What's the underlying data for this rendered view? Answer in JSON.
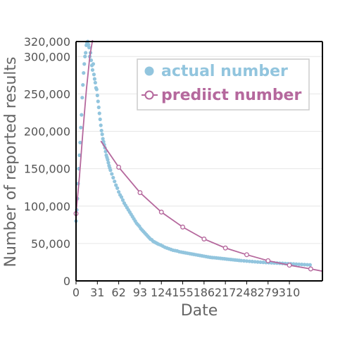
{
  "chart_data": {
    "type": "scatter",
    "xlabel": "Date",
    "ylabel": "Number of reported results",
    "xticks": [
      0,
      31,
      62,
      93,
      124,
      155,
      186,
      217,
      248,
      279,
      310
    ],
    "yticks": [
      0,
      50000,
      100000,
      150000,
      200000,
      250000,
      300000,
      320000
    ],
    "ytick_labels": [
      "0",
      "50,000",
      "100,000",
      "150,000",
      "200,000",
      "250,000",
      "300,000",
      "320,000"
    ],
    "xlim": [
      0,
      358
    ],
    "ylim": [
      0,
      320000
    ],
    "grid": "horizontal",
    "legend_position": "top-right",
    "colors": {
      "actual": "#92c5de",
      "predicted": "#b5689d",
      "grid": "#e6e6e6",
      "axis": "#000000"
    },
    "series": [
      {
        "name": "actual number",
        "kind": "scatter",
        "x": [
          0,
          1,
          2,
          3,
          4,
          5,
          6,
          7,
          8,
          9,
          10,
          11,
          12,
          13,
          14,
          15,
          16,
          17,
          18,
          19,
          20,
          21,
          22,
          23,
          24,
          25,
          26,
          27,
          28,
          29,
          30,
          31,
          32,
          33,
          34,
          35,
          36,
          37,
          38,
          39,
          40,
          41,
          42,
          43,
          44,
          45,
          46,
          47,
          48,
          49,
          50,
          52,
          54,
          56,
          58,
          60,
          62,
          64,
          66,
          68,
          70,
          72,
          74,
          76,
          78,
          80,
          82,
          84,
          86,
          88,
          90,
          92,
          94,
          96,
          98,
          100,
          102,
          104,
          106,
          108,
          110,
          112,
          114,
          116,
          118,
          120,
          123,
          126,
          129,
          132,
          135,
          138,
          141,
          144,
          147,
          150,
          153,
          156,
          159,
          162,
          165,
          168,
          171,
          174,
          177,
          180,
          183,
          186,
          189,
          192,
          195,
          198,
          201,
          204,
          207,
          210,
          213,
          216,
          219,
          222,
          225,
          228,
          231,
          234,
          237,
          240,
          244,
          248,
          252,
          256,
          260,
          264,
          268,
          272,
          276,
          280,
          284,
          288,
          292,
          296,
          300,
          304,
          308,
          312,
          316,
          320,
          324,
          328,
          332,
          336,
          340
        ],
        "y": [
          80000,
          95000,
          110000,
          130000,
          150000,
          168000,
          185000,
          205000,
          222000,
          245000,
          262000,
          278000,
          290000,
          300000,
          305000,
          315000,
          318000,
          320000,
          316000,
          312000,
          300000,
          305000,
          295000,
          288000,
          282000,
          290000,
          276000,
          270000,
          265000,
          258000,
          256000,
          248000,
          240000,
          232000,
          224000,
          216000,
          208000,
          201000,
          196000,
          190000,
          186000,
          182000,
          178000,
          173000,
          168000,
          165000,
          162000,
          158000,
          154000,
          151000,
          148000,
          143000,
          138000,
          133000,
          128000,
          124000,
          119000,
          115000,
          112000,
          108000,
          104000,
          101000,
          98000,
          95000,
          92000,
          89000,
          86000,
          83000,
          80000,
          77000,
          75000,
          73000,
          70000,
          68000,
          66000,
          64000,
          62000,
          60000,
          58000,
          56000,
          55000,
          53000,
          52000,
          51000,
          50000,
          49000,
          48000,
          46500,
          45000,
          44000,
          43000,
          42000,
          41000,
          40500,
          40000,
          39000,
          38500,
          38000,
          37500,
          37000,
          36500,
          36000,
          35500,
          35000,
          34500,
          34000,
          33500,
          33000,
          32500,
          32000,
          31500,
          31200,
          31000,
          30700,
          30400,
          30100,
          29800,
          29500,
          29200,
          28900,
          28600,
          28300,
          28000,
          27700,
          27400,
          27100,
          26800,
          26500,
          26200,
          25900,
          25600,
          25300,
          25000,
          24800,
          24600,
          24400,
          24200,
          24000,
          23800,
          23600,
          23400,
          23200,
          23000,
          22800,
          22600,
          22400,
          22200,
          22000,
          21800,
          21600,
          21400
        ]
      },
      {
        "name": "prediict number",
        "kind": "line",
        "markers_x": [
          0,
          62,
          93,
          124,
          155,
          186,
          217,
          248,
          279,
          310,
          341
        ],
        "segments": [
          {
            "x": [
              0,
              5,
              10,
              15,
              20,
              24
            ],
            "y": [
              90000,
              140000,
              200000,
              255000,
              300000,
              322000
            ]
          },
          {
            "x": [
              36,
              62,
              93,
              124,
              155,
              186,
              217,
              248,
              279,
              310,
              341,
              358
            ],
            "y": [
              187000,
              152000,
              118000,
              92000,
              72000,
              56000,
              44000,
              35000,
              27000,
              21000,
              16000,
              13000
            ]
          }
        ]
      }
    ]
  }
}
